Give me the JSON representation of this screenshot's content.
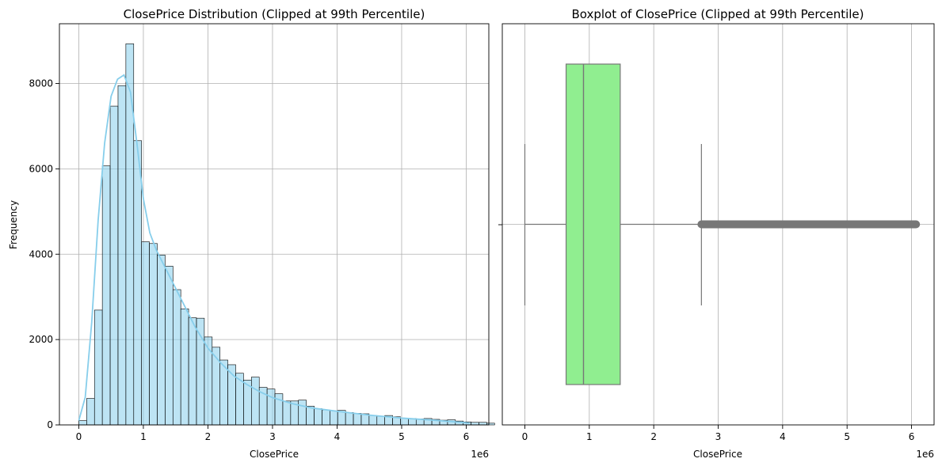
{
  "chart_data": [
    {
      "type": "bar",
      "title": "ClosePrice Distribution (Clipped at 99th Percentile)",
      "xlabel": "ClosePrice",
      "ylabel": "Frequency",
      "x_offset_label": "1e6",
      "xlim": [
        -0.3,
        6.35
      ],
      "ylim": [
        0,
        9400
      ],
      "x_ticks": [
        0,
        1,
        2,
        3,
        4,
        5,
        6
      ],
      "x_tick_labels": [
        "0",
        "1",
        "2",
        "3",
        "4",
        "5",
        "6"
      ],
      "y_ticks": [
        0,
        2000,
        4000,
        6000,
        8000
      ],
      "y_tick_labels": [
        "0",
        "2000",
        "4000",
        "6000",
        "8000"
      ],
      "grid": true,
      "bar_color": "#87ceeb",
      "kde_color": "#87ceeb",
      "bin_start": 0.0,
      "bin_width": 0.1215,
      "values": [
        100,
        620,
        2690,
        6070,
        7470,
        7950,
        8930,
        6660,
        4290,
        4250,
        3980,
        3720,
        3170,
        2720,
        2510,
        2500,
        2060,
        1820,
        1520,
        1410,
        1210,
        1050,
        1120,
        880,
        840,
        730,
        560,
        560,
        580,
        440,
        380,
        350,
        330,
        340,
        290,
        270,
        260,
        220,
        200,
        220,
        190,
        160,
        150,
        140,
        150,
        130,
        110,
        120,
        90,
        70,
        60,
        60,
        40
      ],
      "kde": {
        "x": [
          0.0,
          0.1,
          0.2,
          0.3,
          0.4,
          0.5,
          0.6,
          0.7,
          0.8,
          0.9,
          1.0,
          1.1,
          1.2,
          1.4,
          1.6,
          1.8,
          2.0,
          2.2,
          2.4,
          2.6,
          2.8,
          3.0,
          3.3,
          3.6,
          4.0,
          4.5,
          5.0,
          5.5,
          6.0,
          6.05
        ],
        "y": [
          100,
          650,
          2400,
          4800,
          6600,
          7700,
          8100,
          8200,
          7800,
          6600,
          5300,
          4500,
          4100,
          3500,
          2900,
          2300,
          1800,
          1450,
          1150,
          950,
          780,
          640,
          500,
          400,
          320,
          230,
          160,
          110,
          50,
          40
        ]
      }
    },
    {
      "type": "box",
      "title": "Boxplot of ClosePrice (Clipped at 99th Percentile)",
      "xlabel": "ClosePrice",
      "ylabel": "",
      "x_offset_label": "1e6",
      "xlim": [
        -0.35,
        6.35
      ],
      "x_ticks": [
        0,
        1,
        2,
        3,
        4,
        5,
        6
      ],
      "x_tick_labels": [
        "0",
        "1",
        "2",
        "3",
        "4",
        "5",
        "6"
      ],
      "grid": true,
      "box_color": "#90ee90",
      "line_color": "#777777",
      "whisker_low": 0.0,
      "q1": 0.64,
      "median": 0.91,
      "q3": 1.48,
      "whisker_high": 2.74,
      "outliers_from": 2.74,
      "outliers_to": 6.07
    }
  ]
}
